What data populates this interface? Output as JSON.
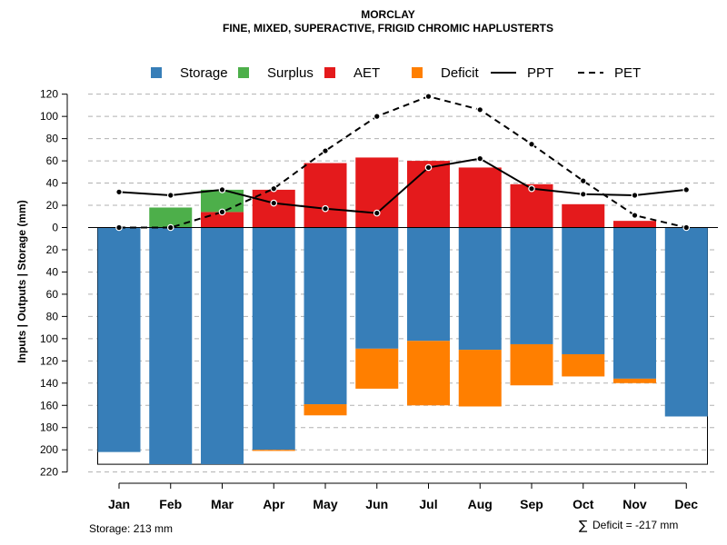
{
  "chart_data": {
    "type": "bar",
    "title": "MORCLAY",
    "subtitle": "FINE, MIXED, SUPERACTIVE, FRIGID CHROMIC HAPLUSTERTS",
    "ylabel": "Inputs | Outputs | Storage    (mm)",
    "categories": [
      "Jan",
      "Feb",
      "Mar",
      "Apr",
      "May",
      "Jun",
      "Jul",
      "Aug",
      "Sep",
      "Oct",
      "Nov",
      "Dec"
    ],
    "ylim": [
      -220,
      120
    ],
    "y_ticks": [
      120,
      100,
      80,
      60,
      40,
      20,
      0,
      -20,
      -40,
      -60,
      -80,
      -100,
      -120,
      -140,
      -160,
      -180,
      -200,
      -220
    ],
    "y_tick_labels": [
      "120",
      "100",
      "80",
      "60",
      "40",
      "20",
      "0",
      "20",
      "40",
      "60",
      "80",
      "100",
      "120",
      "140",
      "160",
      "180",
      "200",
      "220"
    ],
    "legend": [
      {
        "label": "Storage",
        "kind": "box",
        "color": "#377EB8"
      },
      {
        "label": "Surplus",
        "kind": "box",
        "color": "#4DAF4A"
      },
      {
        "label": "AET",
        "kind": "box",
        "color": "#E41A1C"
      },
      {
        "label": "Deficit",
        "kind": "box",
        "color": "#FF7F00"
      },
      {
        "label": "PPT",
        "kind": "solid-line",
        "color": "#000000"
      },
      {
        "label": "PET",
        "kind": "dashed-line",
        "color": "#000000"
      }
    ],
    "series": [
      {
        "name": "AET",
        "color": "#E41A1C",
        "values": [
          0,
          0,
          14,
          34,
          58,
          63,
          60,
          54,
          39,
          21,
          6,
          0
        ]
      },
      {
        "name": "Surplus",
        "color": "#4DAF4A",
        "values": [
          0,
          18,
          20,
          0,
          0,
          0,
          0,
          0,
          0,
          0,
          0,
          0
        ]
      },
      {
        "name": "Storage",
        "color": "#377EB8",
        "values": [
          -202,
          -213,
          -213,
          -200,
          -159,
          -109,
          -102,
          -110,
          -105,
          -114,
          -136,
          -170
        ]
      },
      {
        "name": "Deficit",
        "color": "#FF7F00",
        "values": [
          0,
          0,
          0,
          -1,
          -10,
          -36,
          -58,
          -51,
          -37,
          -20,
          -4,
          0
        ]
      },
      {
        "name": "PPT",
        "type": "line",
        "style": "solid",
        "color": "#000000",
        "values": [
          32,
          29,
          34,
          22,
          17,
          13,
          54,
          62,
          35,
          30,
          29,
          34
        ]
      },
      {
        "name": "PET",
        "type": "line",
        "style": "dashed",
        "color": "#000000",
        "values": [
          0,
          0,
          14,
          35,
          69,
          100,
          118,
          106,
          75,
          42,
          11,
          0
        ]
      }
    ],
    "storage_capacity": 213,
    "footnote_left": "Storage: 213 mm",
    "footnote_right_symbol": "∑",
    "footnote_right": "Deficit = -217 mm",
    "grid": true,
    "legend_position": "top"
  }
}
